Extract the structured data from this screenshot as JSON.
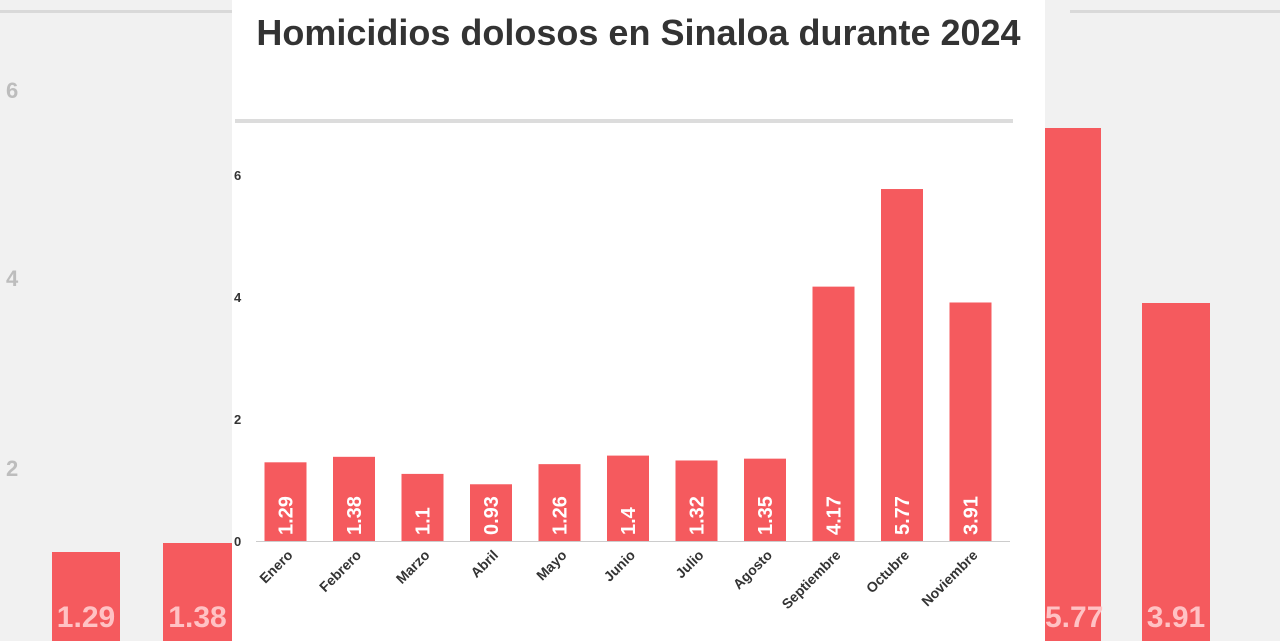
{
  "colors": {
    "bar": "#f55a5e",
    "axis": "#cccccc",
    "text": "#333333"
  },
  "chart_data": {
    "type": "bar",
    "title": "Homicidios dolosos en Sinaloa durante 2024",
    "xlabel": "",
    "ylabel": "",
    "categories": [
      "Enero",
      "Febrero",
      "Marzo",
      "Abril",
      "Mayo",
      "Junio",
      "Julio",
      "Agosto",
      "Septiembre",
      "Octubre",
      "Noviembre"
    ],
    "values": [
      1.29,
      1.38,
      1.1,
      0.93,
      1.26,
      1.4,
      1.32,
      1.35,
      4.17,
      5.77,
      3.91
    ],
    "ylim": [
      0,
      6
    ],
    "yticks": [
      "0",
      "2",
      "4",
      "6"
    ],
    "value_labels": [
      "1.29",
      "1.38",
      "1.1",
      "0.93",
      "1.26",
      "1.4",
      "1.32",
      "1.35",
      "4.17",
      "5.77",
      "3.91"
    ],
    "grid": false,
    "legend": "none"
  },
  "background_ghost": {
    "left_ticks": [
      "6",
      "4",
      "2"
    ],
    "left_labels": [
      "1.29",
      "1.38"
    ],
    "right_labels": [
      "5.77",
      "3.91"
    ]
  }
}
